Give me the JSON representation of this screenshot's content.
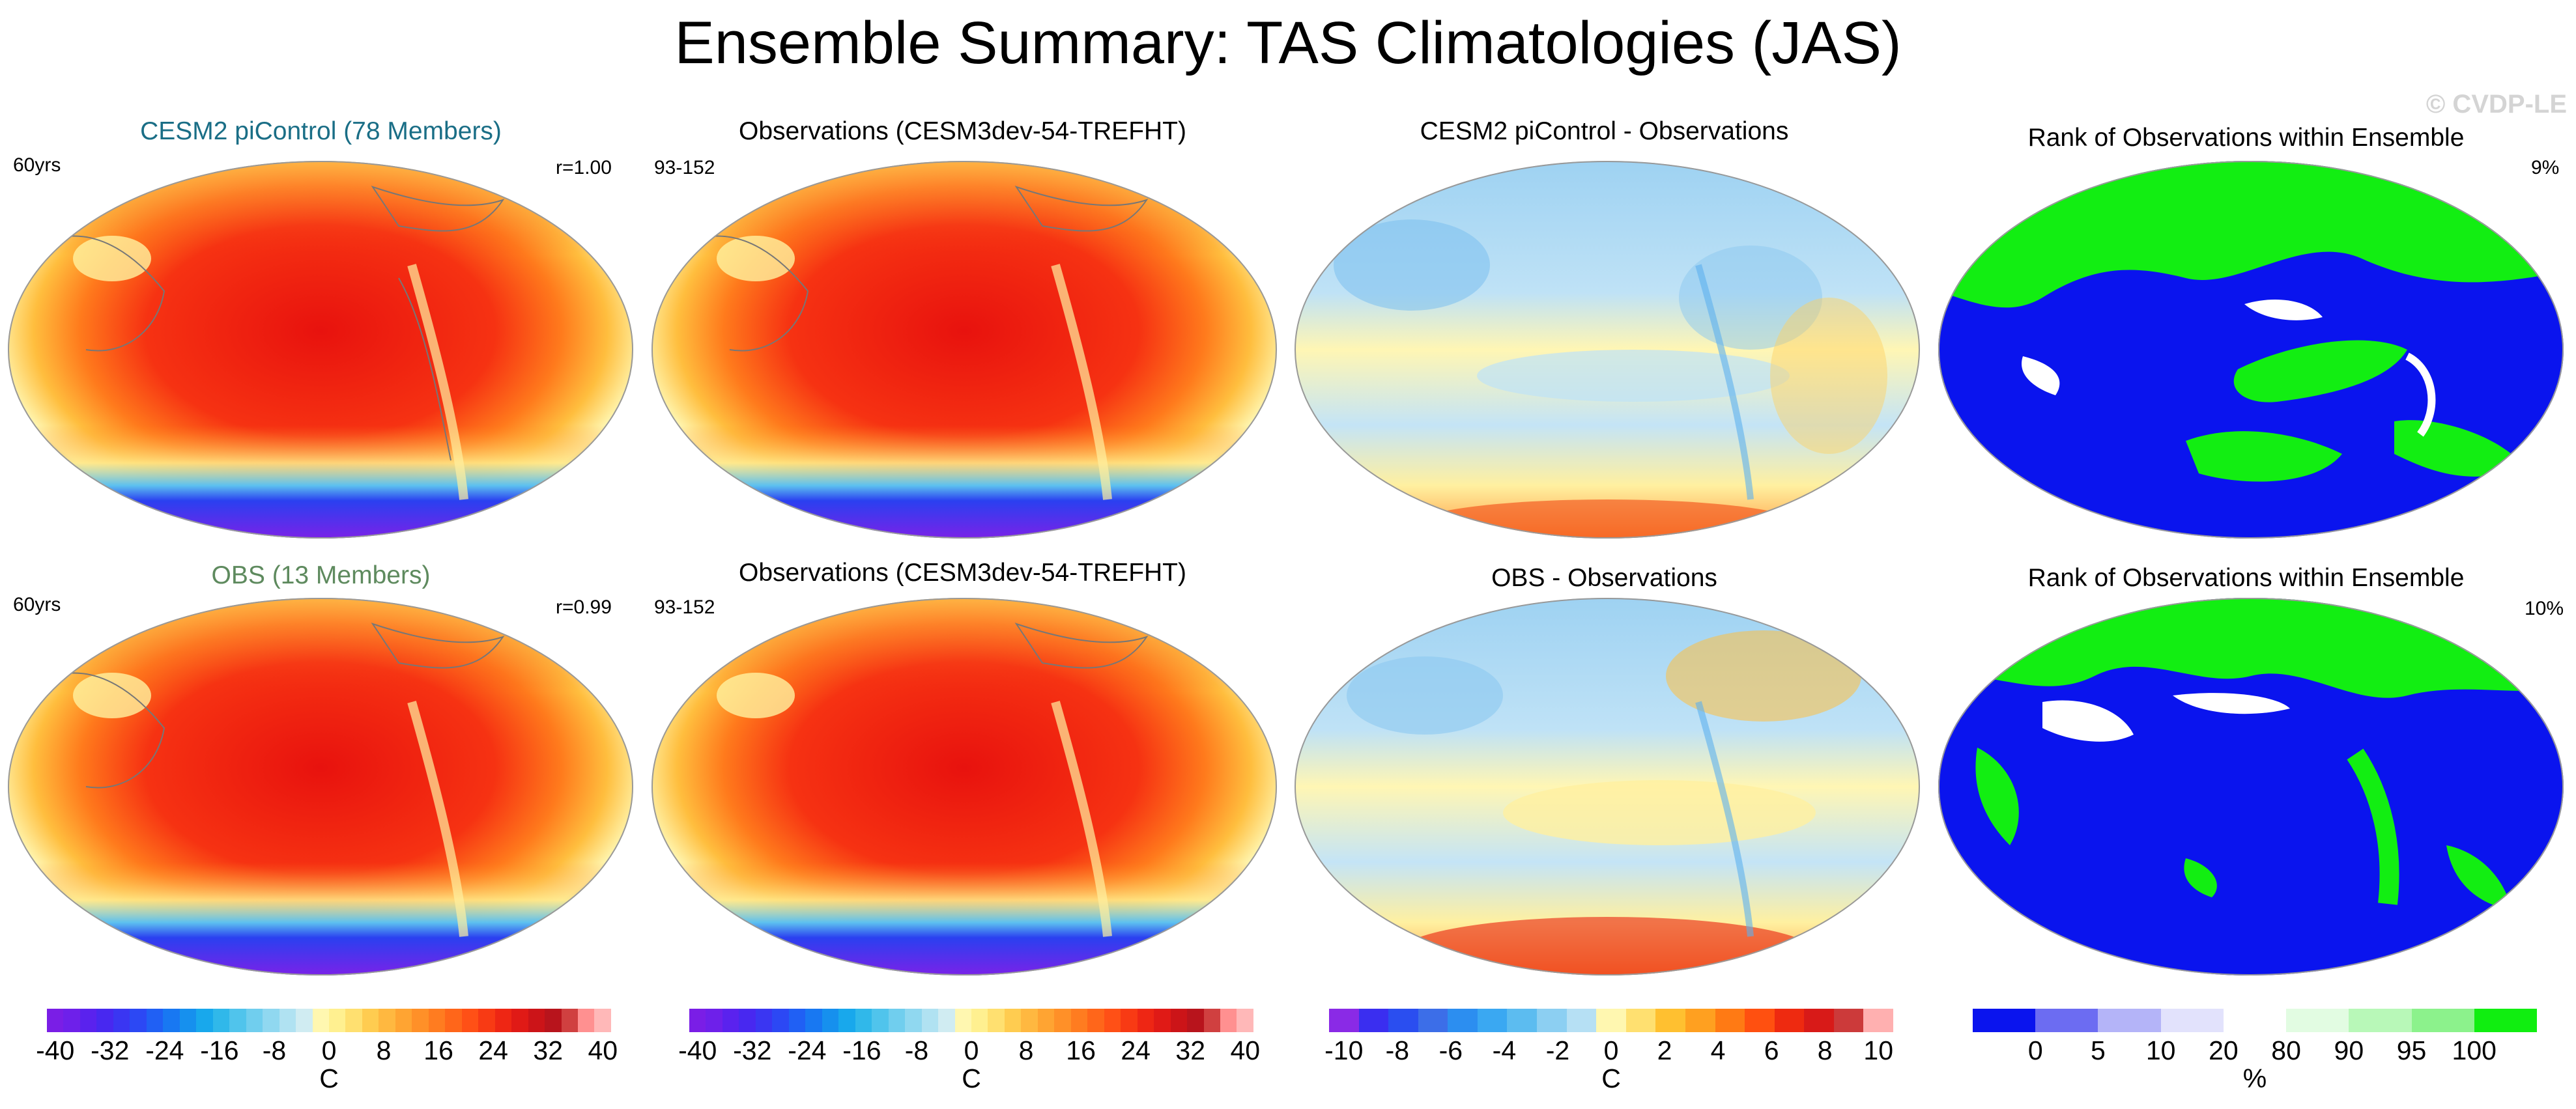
{
  "title": "Ensemble Summary: TAS Climatologies (JAS)",
  "watermark": "© CVDP-LE",
  "rows": [
    {
      "panels": [
        {
          "title": "CESM2 piControl (78 Members)",
          "title_color": "#1a6e86",
          "left": "60yrs",
          "right": "r=1.00"
        },
        {
          "title": "Observations (CESM3dev-54-TREFHT)",
          "title_color": "#000000",
          "left": "93-152",
          "right": ""
        },
        {
          "title": "CESM2 piControl - Observations",
          "title_color": "#000000",
          "left": "",
          "right": ""
        },
        {
          "title": "Rank of Observations within Ensemble",
          "title_color": "#000000",
          "left": "",
          "right": "9%"
        }
      ]
    },
    {
      "panels": [
        {
          "title": "OBS (13 Members)",
          "title_color": "#5e8a5e",
          "left": "60yrs",
          "right": "r=0.99"
        },
        {
          "title": "Observations (CESM3dev-54-TREFHT)",
          "title_color": "#000000",
          "left": "93-152",
          "right": ""
        },
        {
          "title": "OBS - Observations",
          "title_color": "#000000",
          "left": "",
          "right": ""
        },
        {
          "title": "Rank of Observations within Ensemble",
          "title_color": "#000000",
          "left": "",
          "right": "10%"
        }
      ]
    }
  ],
  "colorbars": [
    {
      "ticks": [
        "-40",
        "-32",
        "-24",
        "-16",
        "-8",
        "0",
        "8",
        "16",
        "24",
        "32",
        "40"
      ],
      "unit": "C",
      "colors": [
        "#7a1ee6",
        "#6e20ea",
        "#5a22ee",
        "#4828f0",
        "#3a36f2",
        "#2c48f4",
        "#2060f4",
        "#1878f2",
        "#1690ee",
        "#18a8ec",
        "#30b8ea",
        "#50c4ec",
        "#70ceee",
        "#90d8f0",
        "#b0e2f2",
        "#d0ecf2",
        "#fff7b0",
        "#fff090",
        "#ffe070",
        "#ffcc50",
        "#ffb840",
        "#ffa432",
        "#ff9028",
        "#ff7c20",
        "#ff661a",
        "#ff5016",
        "#f83a14",
        "#ee2614",
        "#e01a16",
        "#cc1418",
        "#b8141c",
        "#d04040",
        "#ff9090",
        "#ffb8b8"
      ]
    },
    {
      "ticks": [
        "-40",
        "-32",
        "-24",
        "-16",
        "-8",
        "0",
        "8",
        "16",
        "24",
        "32",
        "40"
      ],
      "unit": "C",
      "colors": [
        "#7a1ee6",
        "#6e20ea",
        "#5a22ee",
        "#4828f0",
        "#3a36f2",
        "#2c48f4",
        "#2060f4",
        "#1878f2",
        "#1690ee",
        "#18a8ec",
        "#30b8ea",
        "#50c4ec",
        "#70ceee",
        "#90d8f0",
        "#b0e2f2",
        "#d0ecf2",
        "#fff7b0",
        "#fff090",
        "#ffe070",
        "#ffcc50",
        "#ffb840",
        "#ffa432",
        "#ff9028",
        "#ff7c20",
        "#ff661a",
        "#ff5016",
        "#f83a14",
        "#ee2614",
        "#e01a16",
        "#cc1418",
        "#b8141c",
        "#d04040",
        "#ff9090",
        "#ffb8b8"
      ]
    },
    {
      "ticks": [
        "-10",
        "-8",
        "-6",
        "-4",
        "-2",
        "0",
        "2",
        "4",
        "6",
        "8",
        "10"
      ],
      "unit": "C",
      "colors": [
        "#8a2ae6",
        "#3a2ef0",
        "#2a4ef0",
        "#3c6ee8",
        "#2c8ef0",
        "#3aa8f2",
        "#5cbcf0",
        "#8ccff2",
        "#b6e0f4",
        "#fff7b0",
        "#ffe070",
        "#ffc030",
        "#ffa020",
        "#ff7a14",
        "#ff5010",
        "#ee2a10",
        "#d81a18",
        "#cc3a3a",
        "#ffb0b0"
      ]
    },
    {
      "ticks": [
        "0",
        "5",
        "10",
        "20",
        "80",
        "90",
        "95",
        "100"
      ],
      "unit": "%",
      "colors": [
        "#0a14ee",
        "#6c6cf2",
        "#b4b4f8",
        "#e2e2fc",
        "#ffffff",
        "#e2fce2",
        "#b8f8b8",
        "#8cf28c",
        "#10ee10"
      ]
    }
  ]
}
